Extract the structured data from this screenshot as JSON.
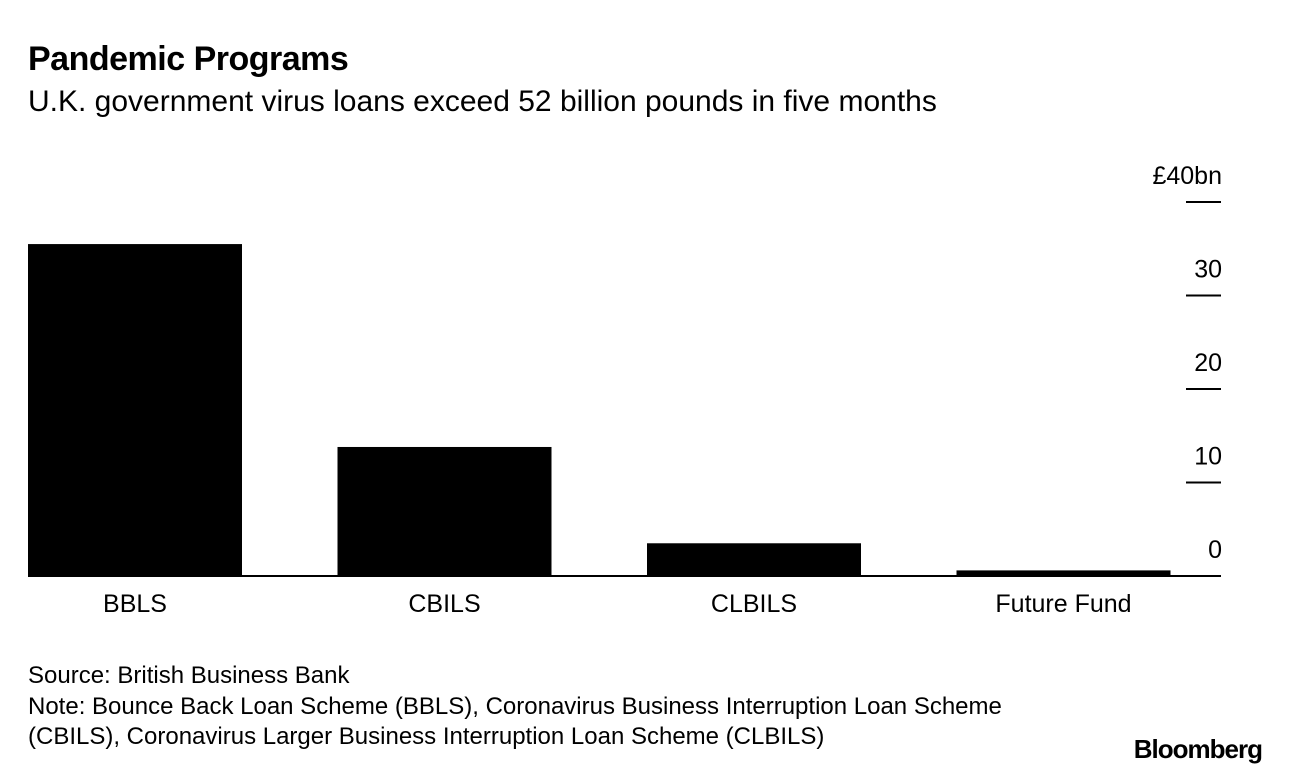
{
  "chart_data": {
    "type": "bar",
    "title": "Pandemic Programs",
    "subtitle": "U.K. government virus loans exceed 52 billion pounds in five months",
    "categories": [
      "BBLS",
      "CBILS",
      "CLBILS",
      "Future Fund"
    ],
    "values": [
      35.5,
      13.8,
      3.5,
      0.6
    ],
    "color": "#000000",
    "ylim": [
      0,
      40
    ],
    "yticks": [
      0,
      10,
      20,
      30,
      {
        "value": 40,
        "label": "£40bn"
      }
    ],
    "source": "Source: British Business Bank",
    "note": "Note: Bounce Back Loan Scheme (BBLS), Coronavirus Business Interruption Loan Scheme (CBILS), Coronavirus Larger Business Interruption Loan Scheme (CLBILS)",
    "brand": "Bloomberg"
  }
}
